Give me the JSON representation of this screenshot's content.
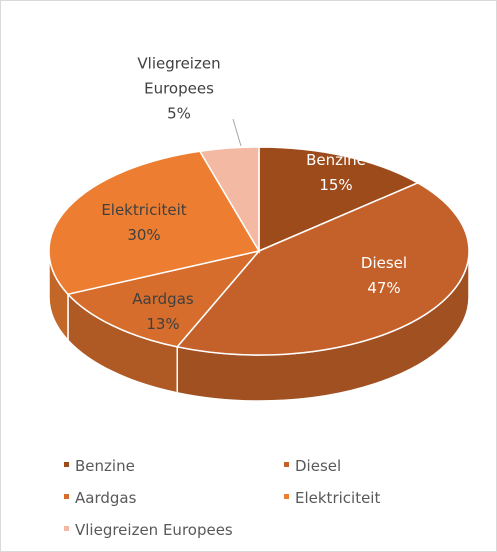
{
  "chart_data": {
    "type": "pie3d",
    "categories": [
      "Benzine",
      "Diesel",
      "Aardgas",
      "Elektriciteit",
      "Vliegreizen Europees"
    ],
    "values": [
      15,
      47,
      13,
      30,
      5
    ],
    "value_labels": [
      "15%",
      "47%",
      "13%",
      "30%",
      "5%"
    ],
    "colors": [
      "#9e4b1c",
      "#c4612a",
      "#d66d2c",
      "#ed7d31",
      "#f4b9a2"
    ],
    "legend": "bottom"
  }
}
